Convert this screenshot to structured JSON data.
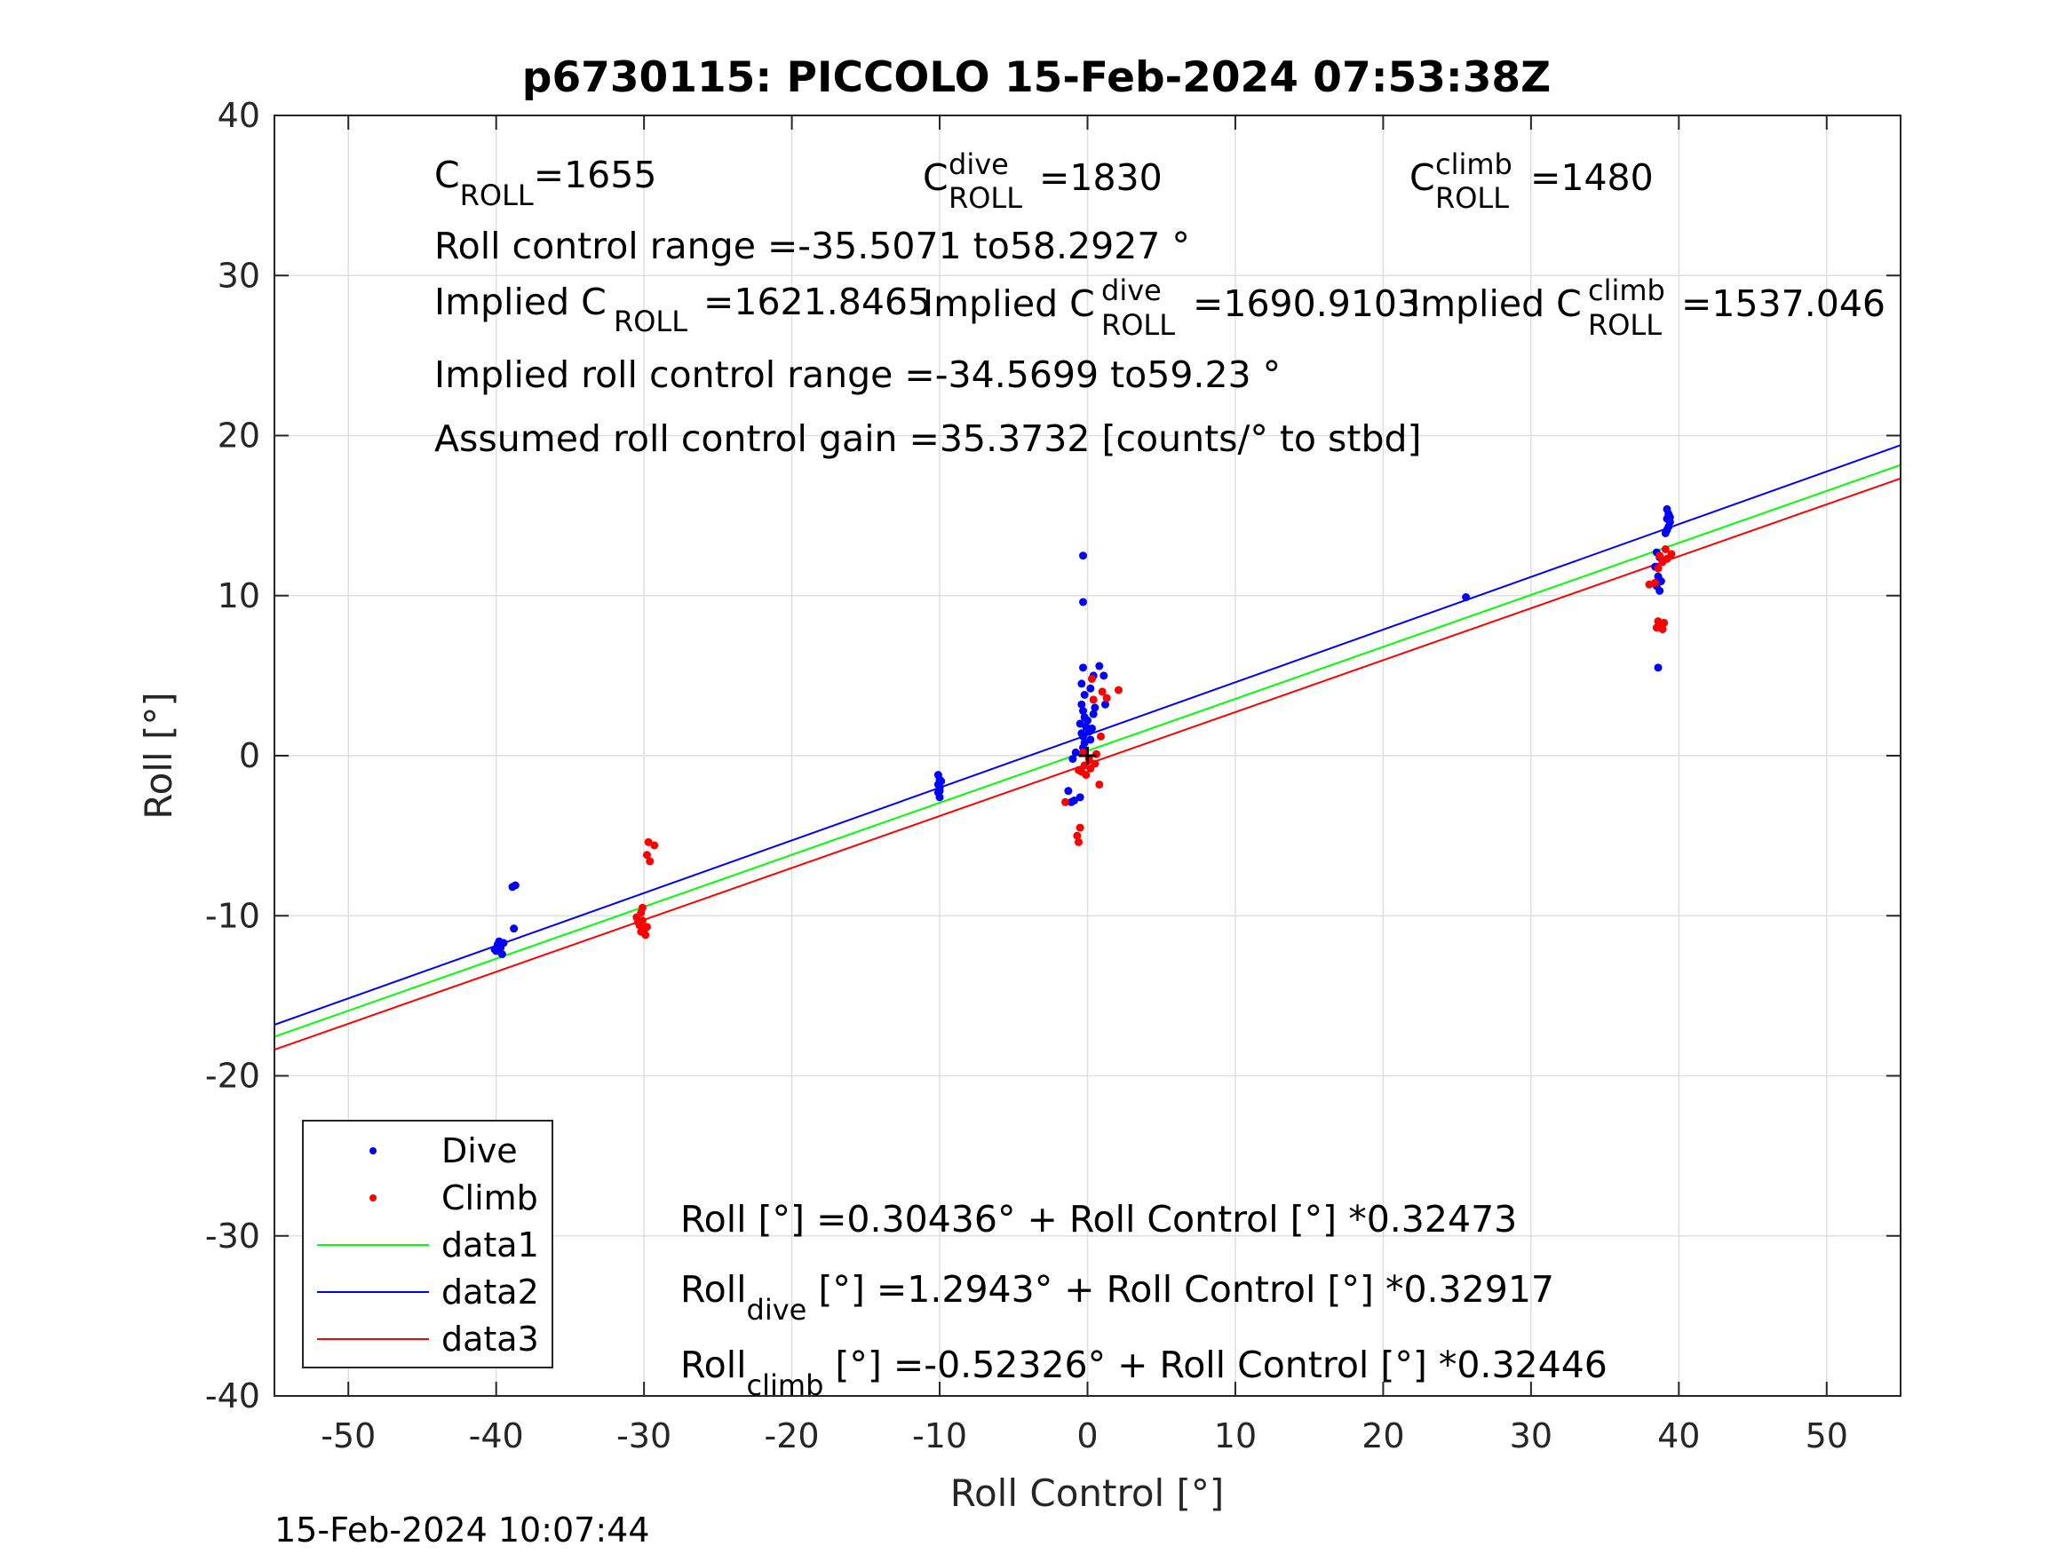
{
  "chart_data": {
    "type": "scatter",
    "title": "p6730115: PICCOLO 15-Feb-2024 07:53:38Z",
    "xlabel": "Roll Control [°]",
    "ylabel": "Roll [°]",
    "xlim": [
      -55,
      55
    ],
    "ylim": [
      -40,
      40
    ],
    "x_ticks": [
      -50,
      -40,
      -30,
      -20,
      -10,
      0,
      10,
      20,
      30,
      40,
      50
    ],
    "y_ticks": [
      -40,
      -30,
      -20,
      -10,
      0,
      10,
      20,
      30,
      40
    ],
    "x_tick_labels": [
      "-50",
      "-40",
      "-30",
      "-20",
      "-10",
      "0",
      "10",
      "20",
      "30",
      "40",
      "50"
    ],
    "y_tick_labels": [
      "-40",
      "-30",
      "-20",
      "-10",
      "0",
      "10",
      "20",
      "30",
      "40"
    ],
    "grid": true,
    "legend_position": "bottom-left",
    "colors": {
      "dive": "#0000ff",
      "climb": "#ff0000",
      "data1": "#00ff00",
      "data2": "#0000ff",
      "data3": "#ff0000",
      "grid": "#dfdfdf",
      "axis": "#262626"
    },
    "series": [
      {
        "name": "Dive",
        "kind": "points",
        "color": "#0000ff",
        "points": [
          [
            -39.8,
            -11.6
          ],
          [
            -39.9,
            -11.8
          ],
          [
            -39.7,
            -12.0
          ],
          [
            -40.0,
            -12.2
          ],
          [
            -39.6,
            -12.4
          ],
          [
            -39.8,
            -11.9
          ],
          [
            -40.1,
            -12.1
          ],
          [
            -39.5,
            -11.7
          ],
          [
            -38.9,
            -8.2
          ],
          [
            -38.7,
            -8.1
          ],
          [
            -38.8,
            -10.8
          ],
          [
            -10.1,
            -1.2
          ],
          [
            -10.0,
            -1.5
          ],
          [
            -10.1,
            -1.8
          ],
          [
            -10.0,
            -2.0
          ],
          [
            -10.1,
            -2.3
          ],
          [
            -10.0,
            -2.6
          ],
          [
            -9.9,
            -1.6
          ],
          [
            -10.0,
            -2.2
          ],
          [
            -0.3,
            12.5
          ],
          [
            -0.3,
            9.6
          ],
          [
            -0.3,
            5.5
          ],
          [
            0.8,
            5.6
          ],
          [
            1.1,
            5.0
          ],
          [
            0.4,
            5.0
          ],
          [
            -0.4,
            4.5
          ],
          [
            0.2,
            4.2
          ],
          [
            -0.2,
            3.8
          ],
          [
            -0.4,
            3.2
          ],
          [
            -0.3,
            2.8
          ],
          [
            -0.2,
            2.4
          ],
          [
            -0.5,
            2.0
          ],
          [
            -0.1,
            1.8
          ],
          [
            0.1,
            1.5
          ],
          [
            -0.3,
            1.2
          ],
          [
            0.2,
            1.0
          ],
          [
            -0.2,
            0.8
          ],
          [
            0.3,
            1.7
          ],
          [
            -0.4,
            1.4
          ],
          [
            0.0,
            2.2
          ],
          [
            0.5,
            3.0
          ],
          [
            1.2,
            3.2
          ],
          [
            -0.3,
            0.5
          ],
          [
            -1.0,
            -0.2
          ],
          [
            -1.3,
            -2.2
          ],
          [
            -0.9,
            -2.8
          ],
          [
            -0.5,
            -2.6
          ],
          [
            -1.1,
            -2.9
          ],
          [
            -0.8,
            0.2
          ],
          [
            0.4,
            2.6
          ],
          [
            25.6,
            9.9
          ],
          [
            39.2,
            15.4
          ],
          [
            39.3,
            15.1
          ],
          [
            39.2,
            14.8
          ],
          [
            39.4,
            14.6
          ],
          [
            39.3,
            14.3
          ],
          [
            39.2,
            14.1
          ],
          [
            39.4,
            14.9
          ],
          [
            39.1,
            13.9
          ],
          [
            38.5,
            12.7
          ],
          [
            38.7,
            12.4
          ],
          [
            38.4,
            11.8
          ],
          [
            38.6,
            11.2
          ],
          [
            38.8,
            10.9
          ],
          [
            38.5,
            10.6
          ],
          [
            38.7,
            10.3
          ],
          [
            38.6,
            5.5
          ]
        ]
      },
      {
        "name": "Climb",
        "kind": "points",
        "color": "#ff0000",
        "points": [
          [
            -30.2,
            -9.8
          ],
          [
            -30.1,
            -10.3
          ],
          [
            -30.3,
            -10.6
          ],
          [
            -30.0,
            -10.9
          ],
          [
            -29.9,
            -11.2
          ],
          [
            -30.2,
            -11.0
          ],
          [
            -30.4,
            -10.4
          ],
          [
            -29.8,
            -10.7
          ],
          [
            -30.1,
            -9.5
          ],
          [
            -29.7,
            -5.4
          ],
          [
            -29.3,
            -5.6
          ],
          [
            -29.8,
            -6.2
          ],
          [
            -29.6,
            -6.6
          ],
          [
            -30.5,
            -10.1
          ],
          [
            -0.5,
            -4.5
          ],
          [
            -0.7,
            -5.0
          ],
          [
            -0.6,
            -5.4
          ],
          [
            -1.5,
            -2.9
          ],
          [
            -0.4,
            -1.0
          ],
          [
            -0.2,
            -0.6
          ],
          [
            0.1,
            -0.2
          ],
          [
            -0.3,
            0.2
          ],
          [
            0.2,
            -0.8
          ],
          [
            0.5,
            -0.5
          ],
          [
            0.8,
            -1.8
          ],
          [
            0.3,
            4.8
          ],
          [
            1.0,
            4.0
          ],
          [
            1.3,
            3.6
          ],
          [
            2.1,
            4.1
          ],
          [
            0.4,
            3.5
          ],
          [
            0.9,
            1.2
          ],
          [
            -0.1,
            -1.2
          ],
          [
            0.6,
            0.1
          ],
          [
            -0.6,
            -0.9
          ],
          [
            38.0,
            10.7
          ],
          [
            38.4,
            10.8
          ],
          [
            38.6,
            11.7
          ],
          [
            38.9,
            12.1
          ],
          [
            39.2,
            12.3
          ],
          [
            39.5,
            12.6
          ],
          [
            39.1,
            12.9
          ],
          [
            38.7,
            12.5
          ],
          [
            38.6,
            8.4
          ],
          [
            38.8,
            8.1
          ],
          [
            39.0,
            8.3
          ],
          [
            38.5,
            8.0
          ],
          [
            38.9,
            7.9
          ]
        ]
      },
      {
        "name": "data1",
        "kind": "line",
        "color": "#00ff00",
        "intercept": 0.30436,
        "slope": 0.32473
      },
      {
        "name": "data2",
        "kind": "line",
        "color": "#0000ff",
        "intercept": 1.2943,
        "slope": 0.32917
      },
      {
        "name": "data3",
        "kind": "line",
        "color": "#ff0000",
        "intercept": -0.52326,
        "slope": 0.32446
      }
    ],
    "origin_marker": {
      "x": 0,
      "y": 0,
      "symbol": "+",
      "color": "#000000"
    },
    "annotations": {
      "c_roll_main": "C",
      "c_roll_sub": "ROLL",
      "c_roll_value": "=1655",
      "c_dive_main": "C",
      "c_dive_sup": "dive",
      "c_dive_sub": "ROLL",
      "c_dive_value": "=1830",
      "c_climb_main": "C",
      "c_climb_sup": "climb",
      "c_climb_sub": "ROLL",
      "c_climb_value": "=1480",
      "range_text": "Roll control range =-35.5071 to58.2927 °",
      "implied_c_main": "Implied C",
      "implied_c_sub": "ROLL",
      "implied_c_value": "=1621.8465",
      "implied_dive_main": "Implied C",
      "implied_dive_sup": "dive",
      "implied_dive_sub": "ROLL",
      "implied_dive_value": "=1690.9103",
      "implied_climb_main": "Implied C",
      "implied_climb_sup": "climb",
      "implied_climb_sub": "ROLL",
      "implied_climb_value": "=1537.046",
      "implied_range_text": "Implied roll control range =-34.5699 to59.23 °",
      "gain_text": "Assumed roll control gain =35.3732 [counts/° to stbd]",
      "fit_all": "Roll [°] =0.30436° + Roll Control [°] *0.32473",
      "fit_dive_main": "Roll",
      "fit_dive_sub": "dive",
      "fit_dive_rest": " [°] =1.2943° + Roll Control [°] *0.32917",
      "fit_climb_main": "Roll",
      "fit_climb_sub": "climb",
      "fit_climb_rest": " [°] =-0.52326° + Roll Control [°] *0.32446"
    },
    "legend": [
      "Dive",
      "Climb",
      "data1",
      "data2",
      "data3"
    ],
    "timestamp": "15-Feb-2024 10:07:44"
  }
}
